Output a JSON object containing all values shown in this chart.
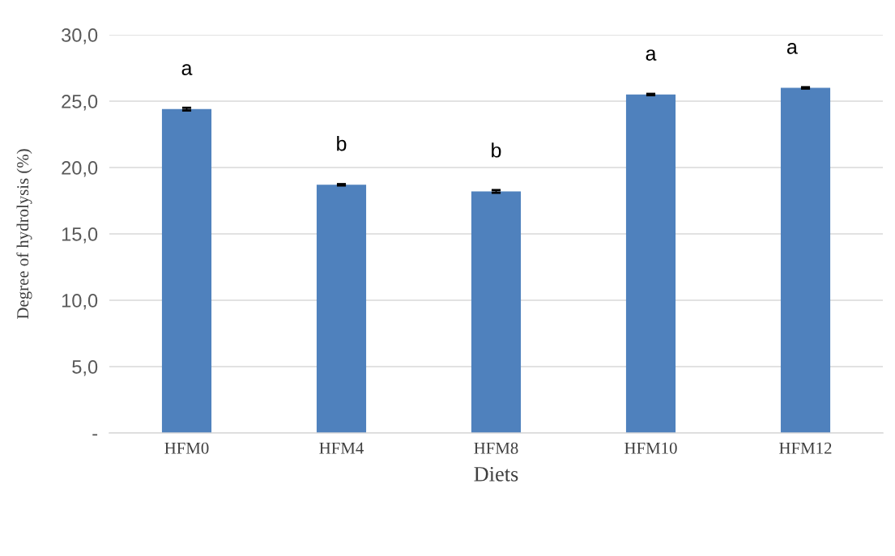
{
  "chart_data": {
    "type": "bar",
    "xlabel": "Diets",
    "ylabel": "Degree of hydrolysis (%)",
    "categories": [
      "HFM0",
      "HFM4",
      "HFM8",
      "HFM10",
      "HFM12"
    ],
    "values": [
      24.4,
      18.7,
      18.2,
      25.5,
      26.0
    ],
    "errors": [
      0.1,
      0.05,
      0.1,
      0.05,
      0.05
    ],
    "color": "#4f81bd",
    "ylim": [
      0,
      30
    ],
    "yticks": [
      {
        "value": 0,
        "label": "-"
      },
      {
        "value": 5,
        "label": "5,0"
      },
      {
        "value": 10,
        "label": "10,0"
      },
      {
        "value": 15,
        "label": "15,0"
      },
      {
        "value": 20,
        "label": "20,0"
      },
      {
        "value": 25,
        "label": "25,0"
      },
      {
        "value": 30,
        "label": "30,0"
      }
    ],
    "grid": "y",
    "annotations": [
      "a",
      "b",
      "b",
      "a",
      "a"
    ]
  }
}
